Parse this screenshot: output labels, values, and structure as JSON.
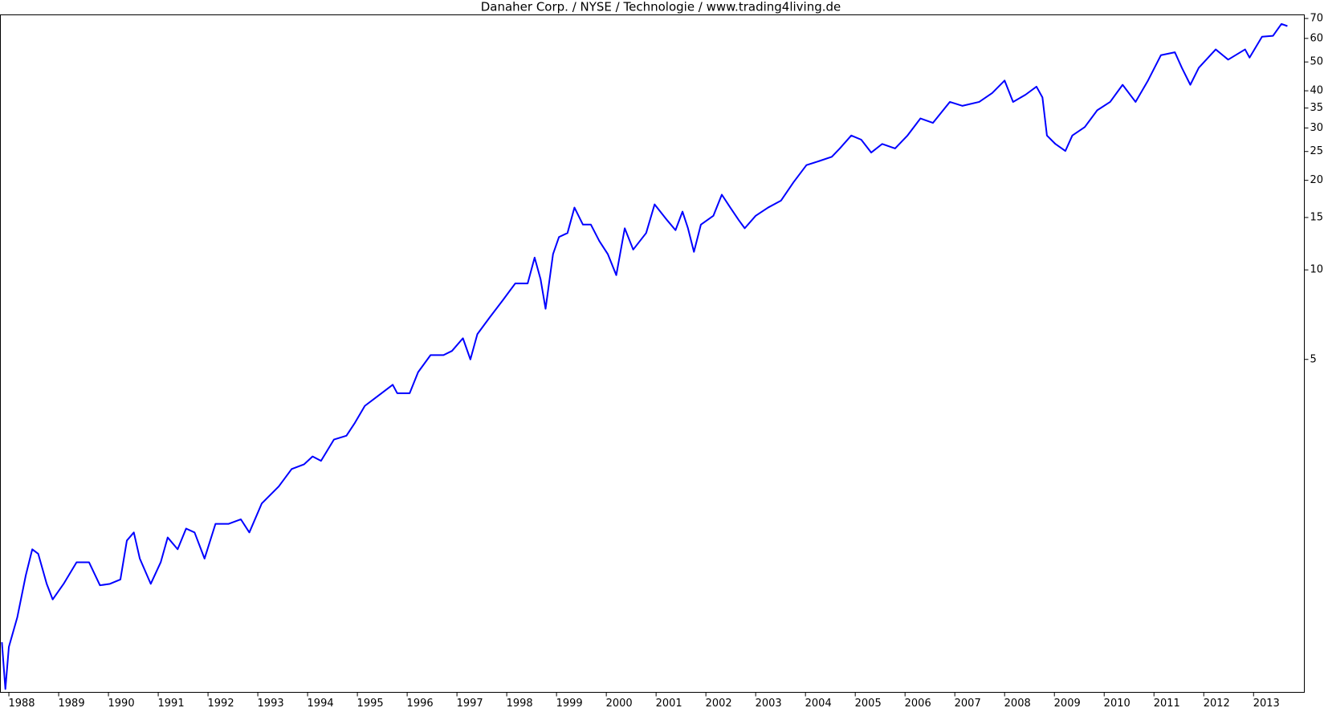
{
  "chart_data": {
    "type": "line",
    "title": "Danaher Corp. / NYSE / Technologie / www.trading4living.de",
    "x": [
      1987.86,
      1987.93,
      1988.0,
      1988.17,
      1988.34,
      1988.47,
      1988.59,
      1988.76,
      1988.88,
      1989.1,
      1989.36,
      1989.61,
      1989.83,
      1990.03,
      1990.24,
      1990.37,
      1990.51,
      1990.63,
      1990.85,
      1991.05,
      1991.19,
      1991.39,
      1991.56,
      1991.73,
      1991.93,
      1992.15,
      1992.41,
      1992.66,
      1992.83,
      1993.08,
      1993.42,
      1993.68,
      1993.93,
      1994.1,
      1994.27,
      1994.53,
      1994.78,
      1994.95,
      1995.15,
      1995.37,
      1995.71,
      1995.8,
      1996.05,
      1996.22,
      1996.47,
      1996.73,
      1996.9,
      1997.12,
      1997.27,
      1997.41,
      1997.66,
      1997.92,
      1998.17,
      1998.42,
      1998.56,
      1998.68,
      1998.78,
      1998.93,
      1999.05,
      1999.22,
      1999.36,
      1999.53,
      1999.69,
      1999.86,
      2000.03,
      2000.2,
      2000.37,
      2000.54,
      2000.8,
      2000.97,
      2001.22,
      2001.39,
      2001.53,
      2001.64,
      2001.76,
      2001.9,
      2002.15,
      2002.32,
      2002.49,
      2002.66,
      2002.78,
      2003.0,
      2003.25,
      2003.51,
      2003.76,
      2004.02,
      2004.27,
      2004.53,
      2004.69,
      2004.92,
      2005.12,
      2005.32,
      2005.54,
      2005.8,
      2006.05,
      2006.31,
      2006.56,
      2006.9,
      2007.15,
      2007.49,
      2007.75,
      2008.0,
      2008.17,
      2008.42,
      2008.64,
      2008.76,
      2008.85,
      2009.02,
      2009.22,
      2009.36,
      2009.61,
      2009.86,
      2010.12,
      2010.37,
      2010.63,
      2010.88,
      2011.14,
      2011.42,
      2011.56,
      2011.73,
      2011.9,
      2012.24,
      2012.49,
      2012.83,
      2012.92,
      2013.17,
      2013.39,
      2013.56,
      2013.68
    ],
    "values": [
      0.56,
      0.39,
      0.54,
      0.68,
      0.94,
      1.15,
      1.11,
      0.88,
      0.78,
      0.88,
      1.04,
      1.04,
      0.87,
      0.88,
      0.91,
      1.23,
      1.31,
      1.07,
      0.88,
      1.04,
      1.26,
      1.15,
      1.35,
      1.31,
      1.07,
      1.4,
      1.4,
      1.45,
      1.31,
      1.64,
      1.87,
      2.14,
      2.22,
      2.36,
      2.28,
      2.69,
      2.77,
      3.06,
      3.49,
      3.72,
      4.11,
      3.85,
      3.85,
      4.53,
      5.17,
      5.17,
      5.34,
      5.89,
      5.0,
      6.08,
      6.93,
      7.9,
      9.0,
      9.0,
      11.0,
      9.3,
      7.4,
      11.3,
      12.9,
      13.3,
      16.2,
      14.2,
      14.2,
      12.5,
      11.3,
      9.6,
      13.8,
      11.7,
      13.3,
      16.6,
      14.7,
      13.6,
      15.7,
      13.8,
      11.5,
      14.2,
      15.2,
      17.9,
      16.2,
      14.7,
      13.8,
      15.2,
      16.2,
      17.1,
      19.7,
      22.5,
      23.2,
      24.0,
      25.6,
      28.3,
      27.4,
      24.8,
      26.5,
      25.6,
      28.3,
      32.3,
      31.2,
      36.7,
      35.6,
      36.7,
      39.3,
      43.3,
      36.7,
      38.8,
      41.3,
      38.0,
      28.3,
      26.5,
      25.1,
      28.3,
      30.2,
      34.4,
      36.7,
      41.9,
      36.7,
      43.3,
      52.7,
      53.9,
      47.8,
      41.9,
      47.8,
      55.1,
      50.9,
      55.1,
      51.7,
      60.8,
      61.2,
      67.1,
      66.0
    ],
    "color": "#0000ff",
    "xlim": [
      1987.83,
      2014.02
    ],
    "xticks": [
      1988,
      1989,
      1990,
      1991,
      1992,
      1993,
      1994,
      1995,
      1996,
      1997,
      1998,
      1999,
      2000,
      2001,
      2002,
      2003,
      2004,
      2005,
      2006,
      2007,
      2008,
      2009,
      2010,
      2011,
      2012,
      2013
    ],
    "ylim": [
      0.38,
      72
    ],
    "yticks": [
      5,
      10,
      15,
      20,
      25,
      30,
      35,
      40,
      50,
      60,
      70
    ],
    "log_y": true,
    "grid": false
  }
}
